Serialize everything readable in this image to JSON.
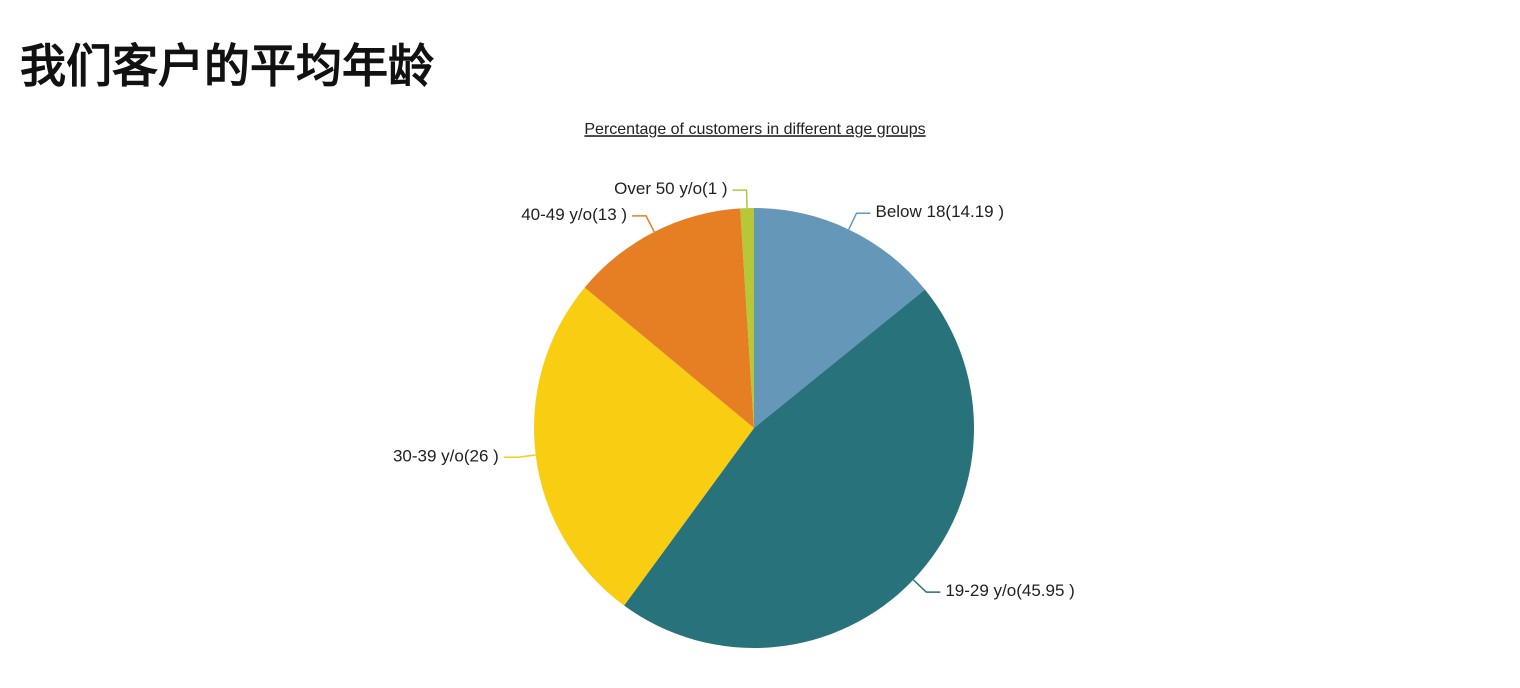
{
  "header": {
    "title": "我们客户的平均年龄"
  },
  "chart_data": {
    "type": "pie",
    "title": "Percentage of customers in different age groups",
    "categories": [
      "Below 18",
      "19-29 y/o",
      "30-39 y/o",
      "40-49 y/o",
      "Over 50 y/o"
    ],
    "values": [
      14.19,
      45.95,
      26,
      13,
      1
    ],
    "value_labels": [
      "(14.19 )",
      "(45.95 )",
      "(26 )",
      "(13 )",
      "(1 )"
    ],
    "colors": [
      "#6597b9",
      "#28727b",
      "#f9cd12",
      "#e67e24",
      "#b5c938"
    ]
  }
}
